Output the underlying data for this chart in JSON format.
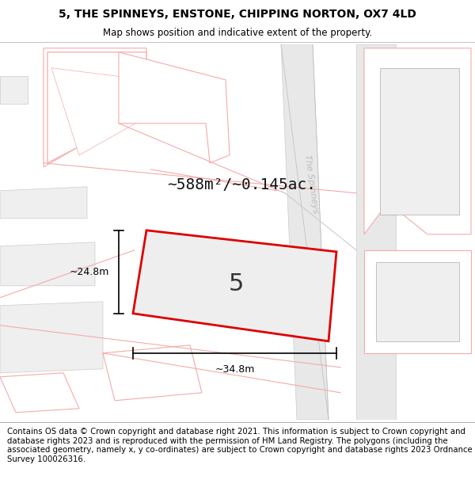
{
  "title_line1": "5, THE SPINNEYS, ENSTONE, CHIPPING NORTON, OX7 4LD",
  "title_line2": "Map shows position and indicative extent of the property.",
  "footer_text": "Contains OS data © Crown copyright and database right 2021. This information is subject to Crown copyright and database rights 2023 and is reproduced with the permission of HM Land Registry. The polygons (including the associated geometry, namely x, y co-ordinates) are subject to Crown copyright and database rights 2023 Ordnance Survey 100026316.",
  "area_label": "~588m²/~0.145ac.",
  "width_label": "~34.8m",
  "height_label": "~24.8m",
  "plot_number": "5",
  "bg_color": "#ffffff",
  "building_edge_color": "#f5aaaa",
  "building_fill": "#f0f0f0",
  "building_fill_white": "#ffffff",
  "road_fill": "#e8e8e8",
  "road_edge": "#cccccc",
  "plot_outline_color": "#dd0000",
  "plot_fill_color": "#eeeeee",
  "dim_line_color": "#000000",
  "title_color": "#000000",
  "footer_color": "#000000",
  "road_label_color": "#bbbbbb",
  "title_fontsize": 10,
  "subtitle_fontsize": 9,
  "footer_fontsize": 7.3,
  "area_label_fontsize": 14,
  "plot_num_fontsize": 22
}
